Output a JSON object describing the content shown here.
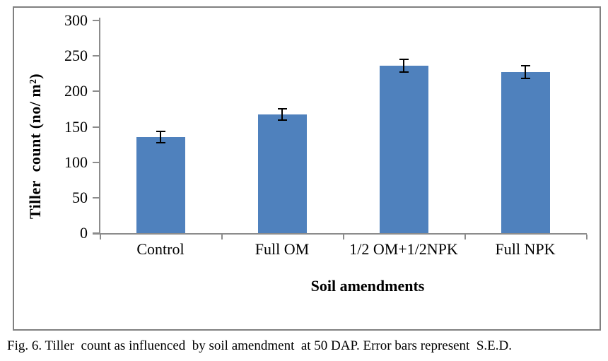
{
  "figure": {
    "caption": "Fig. 6. Tiller  count as influenced  by soil amendment  at 50 DAP. Error bars represent  S.E.D."
  },
  "chart_data": {
    "type": "bar",
    "title": "",
    "categories": [
      "Control",
      "Full OM",
      "1/2 OM+1/2NPK",
      "Full NPK"
    ],
    "values": [
      136,
      167,
      236,
      227
    ],
    "errors": [
      8,
      8,
      9,
      9
    ],
    "error_note": "Error bars represent S.E.D.",
    "xlabel": "Soil amendments",
    "ylabel": "Tiller  count (no/ m²)",
    "ylim": [
      0,
      300
    ],
    "yticks": [
      0,
      50,
      100,
      150,
      200,
      250,
      300
    ],
    "grid": false,
    "legend": false,
    "bar_color": "#4F81BD",
    "axis_color": "#8C8C8C",
    "frame_color": "#808080",
    "error_bar_color": "#000000",
    "text_color": "#000000"
  }
}
